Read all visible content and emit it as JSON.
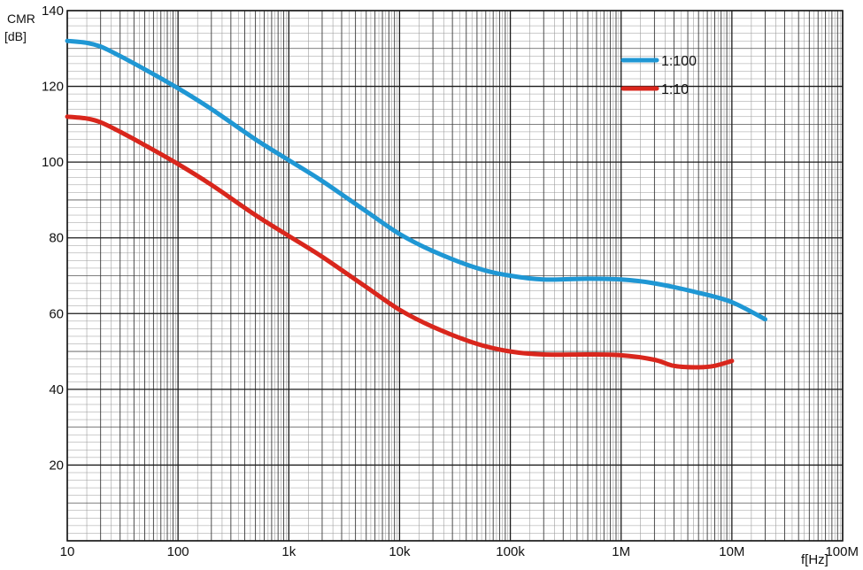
{
  "chart_data": {
    "type": "line",
    "title": "",
    "ylabel": "CMR",
    "yunit": "[dB]",
    "xlabel": "f[Hz]",
    "x_scale": "log",
    "xlim": [
      10,
      100000000
    ],
    "ylim": [
      0,
      140
    ],
    "x_ticks": [
      10,
      100,
      1000,
      10000,
      100000,
      1000000,
      10000000,
      100000000
    ],
    "x_tick_labels": [
      "10",
      "100",
      "1k",
      "10k",
      "100k",
      "1M",
      "10M",
      "100M"
    ],
    "y_ticks": [
      20,
      40,
      60,
      80,
      100,
      120,
      140
    ],
    "y_tick_labels": [
      "20",
      "40",
      "60",
      "80",
      "100",
      "120",
      "140"
    ],
    "grid": true,
    "legend_position": "top-right",
    "series": [
      {
        "name": "1:100",
        "color": "#1f97d4",
        "x": [
          10,
          15,
          20,
          30,
          50,
          100,
          200,
          500,
          1000,
          2000,
          5000,
          10000,
          20000,
          50000,
          100000,
          200000,
          500000,
          1000000,
          2000000,
          5000000,
          10000000,
          20000000
        ],
        "y": [
          132,
          131.5,
          130.5,
          128,
          124.5,
          119.5,
          114,
          106,
          100.5,
          95,
          87,
          81,
          76.5,
          72,
          70,
          69,
          69.2,
          69,
          68,
          65.5,
          63,
          58.5
        ]
      },
      {
        "name": "1:10",
        "color": "#d9261c",
        "x": [
          10,
          15,
          20,
          30,
          50,
          100,
          200,
          500,
          1000,
          2000,
          5000,
          10000,
          20000,
          50000,
          100000,
          200000,
          500000,
          1000000,
          2000000,
          3000000,
          5000000,
          7000000,
          10000000
        ],
        "y": [
          112,
          111.5,
          110.5,
          108,
          104.5,
          99.5,
          94,
          86,
          80.5,
          75,
          67,
          61,
          56.5,
          52,
          50,
          49.2,
          49.2,
          49,
          47.8,
          46.2,
          45.8,
          46.2,
          47.5
        ]
      }
    ]
  }
}
